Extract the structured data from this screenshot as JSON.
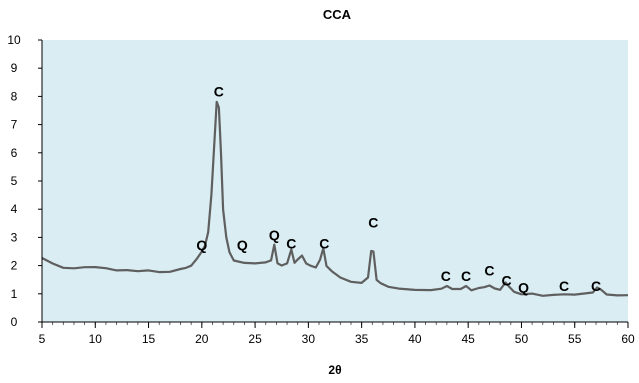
{
  "chart_data": {
    "type": "line",
    "title": "CCA",
    "xlabel": "2θ",
    "ylabel": "",
    "xlim": [
      5,
      60
    ],
    "ylim": [
      0,
      10
    ],
    "xticks": [
      5,
      10,
      15,
      20,
      25,
      30,
      35,
      40,
      45,
      50,
      55,
      60
    ],
    "yticks": [
      0,
      1,
      2,
      3,
      4,
      5,
      6,
      7,
      8,
      9,
      10
    ],
    "x_minor_tick_step": 1,
    "grid": false,
    "legend": "none",
    "colors": {
      "plot_background": "#d9edf2",
      "series": "#5f5f5f",
      "axis": "#000000"
    },
    "series": [
      {
        "name": "",
        "x": [
          5,
          6,
          7,
          8,
          9,
          10,
          11,
          12,
          13,
          14,
          15,
          16,
          17,
          18,
          18.5,
          19,
          19.5,
          20,
          20.3,
          20.6,
          20.9,
          21.2,
          21.4,
          21.6,
          21.8,
          22.0,
          22.3,
          22.6,
          23.0,
          24.0,
          25.0,
          26.0,
          26.5,
          26.8,
          27.1,
          27.5,
          28.0,
          28.4,
          28.7,
          29.0,
          29.4,
          29.8,
          30.2,
          30.7,
          31.1,
          31.4,
          31.7,
          32.2,
          33.0,
          34.0,
          35.0,
          35.6,
          35.9,
          36.1,
          36.4,
          36.8,
          37.5,
          38.5,
          40.0,
          41.5,
          42.5,
          43.0,
          43.5,
          44.3,
          44.8,
          45.3,
          46.0,
          46.5,
          47.0,
          47.5,
          48.0,
          48.5,
          48.9,
          49.3,
          50.0,
          51.0,
          52.0,
          53.0,
          54.0,
          55.0,
          56.0,
          56.7,
          57.1,
          57.5,
          58.0,
          59.0,
          60.0
        ],
        "y": [
          2.3,
          2.05,
          1.95,
          1.9,
          1.95,
          1.95,
          1.9,
          1.85,
          1.85,
          1.8,
          1.8,
          1.75,
          1.8,
          1.85,
          1.9,
          2.0,
          2.2,
          2.5,
          2.7,
          3.2,
          4.5,
          6.5,
          7.8,
          7.6,
          6.0,
          4.0,
          3.0,
          2.5,
          2.2,
          2.1,
          2.05,
          2.1,
          2.2,
          2.75,
          2.1,
          2.0,
          2.05,
          2.55,
          2.1,
          2.2,
          2.35,
          2.05,
          2.0,
          1.95,
          2.2,
          2.6,
          2.0,
          1.8,
          1.6,
          1.45,
          1.4,
          1.6,
          2.5,
          2.5,
          1.5,
          1.35,
          1.25,
          1.2,
          1.15,
          1.15,
          1.2,
          1.3,
          1.15,
          1.2,
          1.3,
          1.15,
          1.2,
          1.25,
          1.3,
          1.2,
          1.15,
          1.4,
          1.25,
          1.1,
          1.0,
          1.0,
          0.95,
          0.95,
          1.0,
          1.0,
          1.0,
          1.05,
          1.25,
          1.15,
          1.0,
          0.95,
          0.95
        ]
      }
    ],
    "annotations": [
      {
        "text": "C",
        "x": 21.6,
        "y": 8.0
      },
      {
        "text": "Q",
        "x": 20.0,
        "y": 2.55
      },
      {
        "text": "Q",
        "x": 23.8,
        "y": 2.55
      },
      {
        "text": "Q",
        "x": 26.8,
        "y": 2.9
      },
      {
        "text": "C",
        "x": 28.4,
        "y": 2.6
      },
      {
        "text": "C",
        "x": 31.5,
        "y": 2.6
      },
      {
        "text": "C",
        "x": 36.1,
        "y": 3.35
      },
      {
        "text": "C",
        "x": 42.9,
        "y": 1.45
      },
      {
        "text": "C",
        "x": 44.8,
        "y": 1.45
      },
      {
        "text": "C",
        "x": 47.0,
        "y": 1.65
      },
      {
        "text": "C",
        "x": 48.6,
        "y": 1.3
      },
      {
        "text": "Q",
        "x": 50.2,
        "y": 1.05
      },
      {
        "text": "C",
        "x": 54.0,
        "y": 1.1
      },
      {
        "text": "C",
        "x": 57.0,
        "y": 1.1
      }
    ]
  }
}
